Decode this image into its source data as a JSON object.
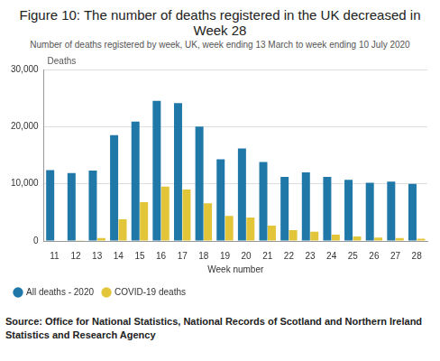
{
  "chart_data": {
    "type": "bar",
    "title": "Figure 10: The number of deaths registered in the UK decreased in Week 28",
    "subtitle": "Number of deaths registered by week, UK, week ending 13 March to week ending 10 July 2020",
    "source": "Source: Office for National Statistics, National Records of Scotland and Northern Ireland Statistics and Research Agency",
    "x_label": "Week number",
    "y_label": "Deaths",
    "categories": [
      "11",
      "12",
      "13",
      "14",
      "15",
      "16",
      "17",
      "18",
      "19",
      "20",
      "21",
      "22",
      "23",
      "24",
      "25",
      "26",
      "27",
      "28"
    ],
    "series": [
      {
        "name": "All deaths - 2020",
        "color": "#1f78a8",
        "values": [
          12400,
          11900,
          12300,
          18500,
          20900,
          24500,
          24100,
          20000,
          14300,
          16200,
          13800,
          11200,
          12000,
          11200,
          10700,
          10200,
          10400,
          10000
        ]
      },
      {
        "name": "COVID-19 deaths",
        "color": "#e3c53a",
        "values": [
          0,
          100,
          500,
          3800,
          6800,
          9500,
          9000,
          6600,
          4400,
          4100,
          2700,
          1900,
          1600,
          1100,
          800,
          600,
          500,
          400
        ]
      }
    ],
    "ylim": [
      0,
      30000
    ],
    "yticks": [
      0,
      {
        "value": 10000,
        "label": "10,000"
      },
      {
        "value": 20000,
        "label": "20,000"
      },
      {
        "value": 30000,
        "label": "30,000"
      }
    ],
    "grid": true,
    "legend": "bottom"
  }
}
